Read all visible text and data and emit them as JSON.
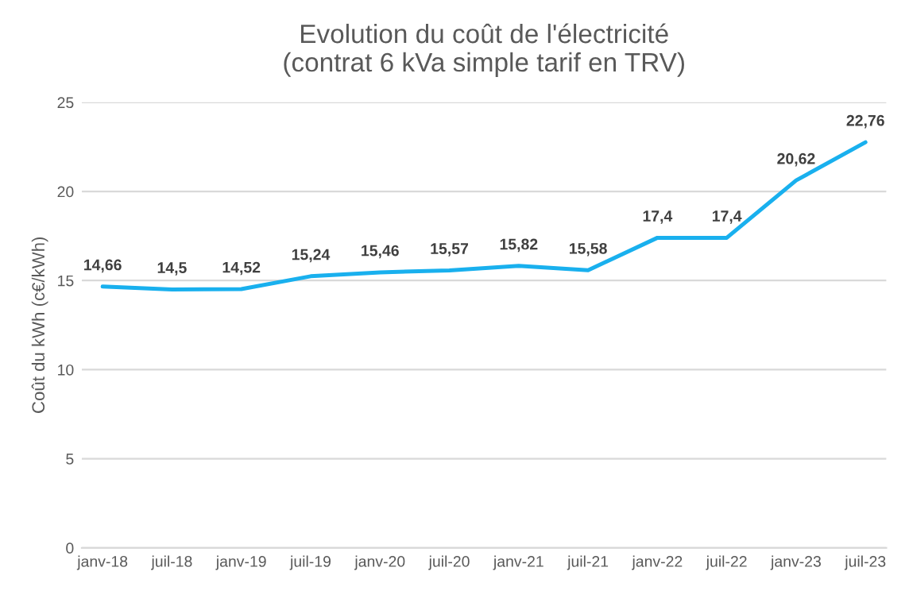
{
  "chart_data": {
    "type": "line",
    "title": "Evolution du coût de l'électricité\n(contrat 6 kVa simple tarif en TRV)",
    "ylabel": "Coût du kWh (c€/kWh)",
    "categories": [
      "janv-18",
      "juil-18",
      "janv-19",
      "juil-19",
      "janv-20",
      "juil-20",
      "janv-21",
      "juil-21",
      "janv-22",
      "juil-22",
      "janv-23",
      "juil-23"
    ],
    "series": [
      {
        "color": "#19b0ee",
        "values": [
          14.66,
          14.5,
          14.52,
          15.24,
          15.46,
          15.57,
          15.82,
          15.58,
          17.4,
          17.4,
          20.62,
          22.76
        ],
        "value_labels": [
          "14,66",
          "14,5",
          "14,52",
          "15,24",
          "15,46",
          "15,57",
          "15,82",
          "15,58",
          "17,4",
          "17,4",
          "20,62",
          "22,76"
        ]
      }
    ],
    "ylim": [
      0,
      25
    ],
    "yticks": [
      0,
      5,
      10,
      15,
      20,
      25
    ],
    "grid": "y",
    "marker": "none",
    "line_style": "solid",
    "legend": false
  }
}
